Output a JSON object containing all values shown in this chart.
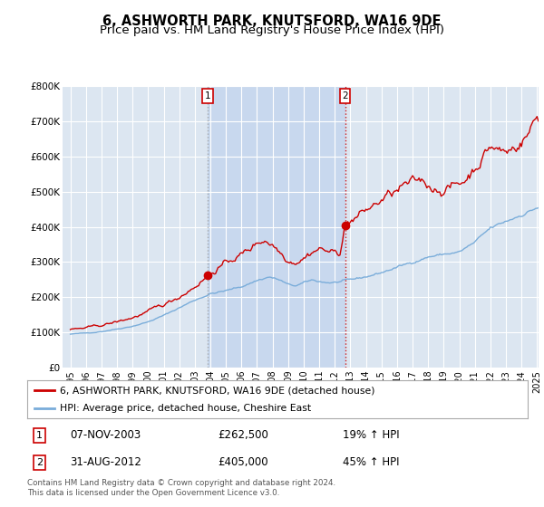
{
  "title": "6, ASHWORTH PARK, KNUTSFORD, WA16 9DE",
  "subtitle": "Price paid vs. HM Land Registry's House Price Index (HPI)",
  "title_fontsize": 10.5,
  "subtitle_fontsize": 9.5,
  "background_color": "#ffffff",
  "plot_bg_color": "#dce6f1",
  "highlight_bg_color": "#c8d8ee",
  "grid_color": "#ffffff",
  "ylim": [
    0,
    800000
  ],
  "yticks": [
    0,
    100000,
    200000,
    300000,
    400000,
    500000,
    600000,
    700000,
    800000
  ],
  "ytick_labels": [
    "£0",
    "£100K",
    "£200K",
    "£300K",
    "£400K",
    "£500K",
    "£600K",
    "£700K",
    "£800K"
  ],
  "red_color": "#cc0000",
  "blue_color": "#7aadda",
  "marker_color": "#cc0000",
  "sale1_date": "07-NOV-2003",
  "sale1_price": "£262,500",
  "sale1_hpi": "19% ↑ HPI",
  "sale1_x": 2003.85,
  "sale1_y": 262500,
  "sale2_date": "31-AUG-2012",
  "sale2_price": "£405,000",
  "sale2_hpi": "45% ↑ HPI",
  "sale2_x": 2012.66,
  "sale2_y": 405000,
  "legend_label_red": "6, ASHWORTH PARK, KNUTSFORD, WA16 9DE (detached house)",
  "legend_label_blue": "HPI: Average price, detached house, Cheshire East",
  "footer": "Contains HM Land Registry data © Crown copyright and database right 2024.\nThis data is licensed under the Open Government Licence v3.0.",
  "x_start": 1995.0,
  "x_end": 2025.1,
  "xtick_years": [
    1995,
    1996,
    1997,
    1998,
    1999,
    2000,
    2001,
    2002,
    2003,
    2004,
    2005,
    2006,
    2007,
    2008,
    2009,
    2010,
    2011,
    2012,
    2013,
    2014,
    2015,
    2016,
    2017,
    2018,
    2019,
    2020,
    2021,
    2022,
    2023,
    2024,
    2025
  ]
}
